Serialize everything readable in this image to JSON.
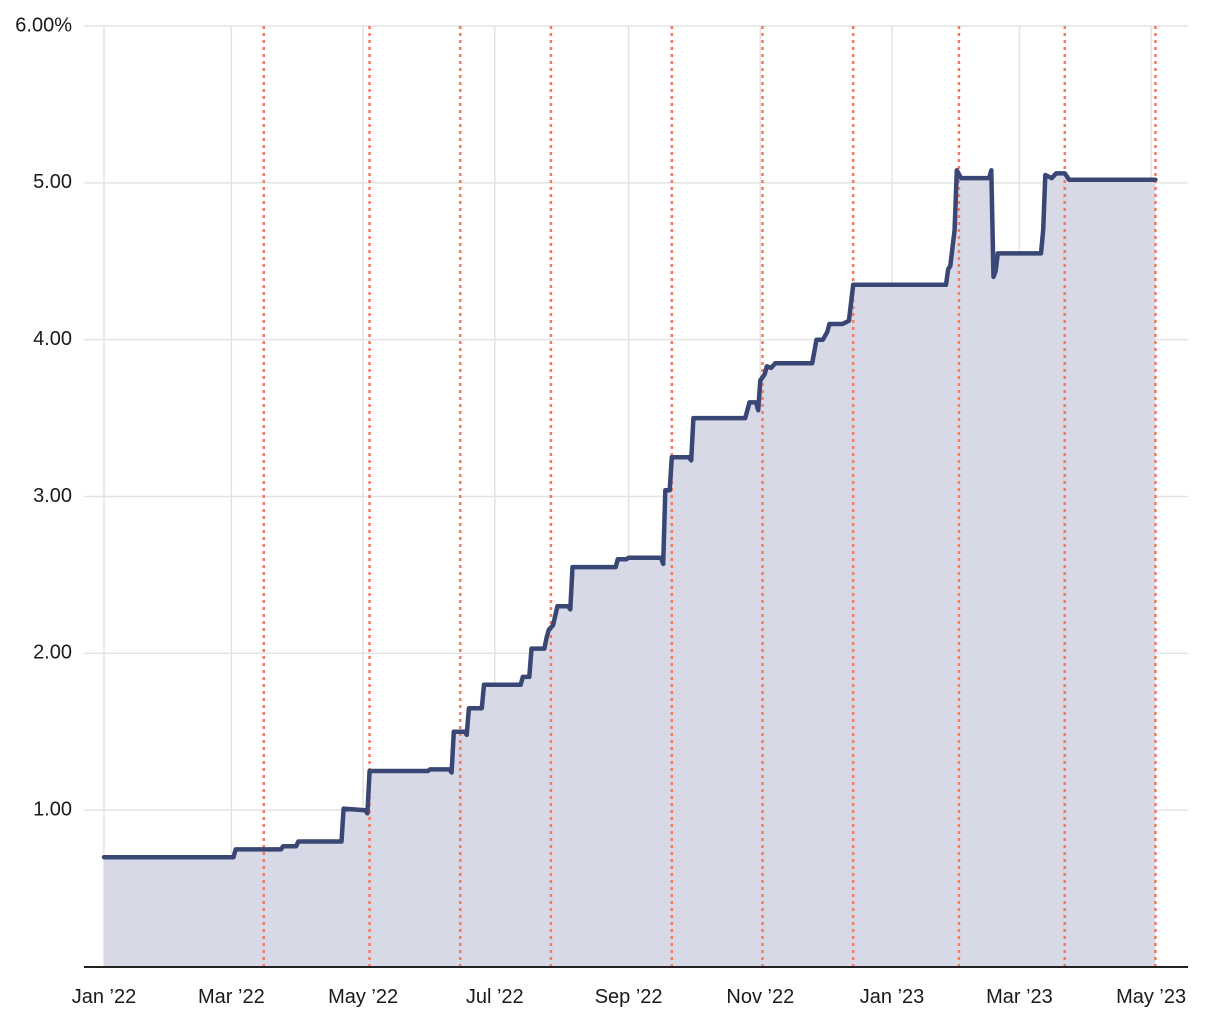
{
  "chart_data": {
    "type": "area",
    "title": "",
    "xlabel": "",
    "ylabel": "",
    "y_unit_suffix": "%",
    "ylim": [
      0,
      6
    ],
    "y_ticks": [
      {
        "value": 1,
        "label": "1.00"
      },
      {
        "value": 2,
        "label": "2.00"
      },
      {
        "value": 3,
        "label": "3.00"
      },
      {
        "value": 4,
        "label": "4.00"
      },
      {
        "value": 5,
        "label": "5.00"
      },
      {
        "value": 6,
        "label": "6.00%"
      }
    ],
    "xlim": [
      "2022-01-01",
      "2023-05-03"
    ],
    "x_ticks": [
      {
        "date": "2022-01-01",
        "label": "Jan ’22"
      },
      {
        "date": "2022-03-01",
        "label": "Mar ’22"
      },
      {
        "date": "2022-05-01",
        "label": "May ’22"
      },
      {
        "date": "2022-07-01",
        "label": "Jul ’22"
      },
      {
        "date": "2022-09-01",
        "label": "Sep ’22"
      },
      {
        "date": "2022-11-01",
        "label": "Nov ’22"
      },
      {
        "date": "2023-01-01",
        "label": "Jan ’23"
      },
      {
        "date": "2023-03-01",
        "label": "Mar ’23"
      },
      {
        "date": "2023-05-01",
        "label": "May ’23"
      }
    ],
    "grid": {
      "horizontal": true,
      "vertical": true
    },
    "colors": {
      "line": "#3a4775",
      "area": "#d7dae6",
      "event_line": "#f5785f",
      "grid": "#e3e3e3",
      "axis": "#222222"
    },
    "event_dates": [
      "2022-03-16",
      "2022-05-04",
      "2022-06-15",
      "2022-07-27",
      "2022-09-21",
      "2022-11-02",
      "2022-12-14",
      "2023-02-01",
      "2023-03-22",
      "2023-05-03"
    ],
    "series": [
      {
        "points": [
          [
            "2022-01-01",
            0.7
          ],
          [
            "2022-03-02",
            0.7
          ],
          [
            "2022-03-03",
            0.75
          ],
          [
            "2022-03-24",
            0.75
          ],
          [
            "2022-03-25",
            0.77
          ],
          [
            "2022-03-31",
            0.77
          ],
          [
            "2022-04-01",
            0.8
          ],
          [
            "2022-04-21",
            0.8
          ],
          [
            "2022-04-22",
            1.01
          ],
          [
            "2022-05-02",
            1.0
          ],
          [
            "2022-05-03",
            0.98
          ],
          [
            "2022-05-04",
            1.25
          ],
          [
            "2022-05-31",
            1.25
          ],
          [
            "2022-06-01",
            1.26
          ],
          [
            "2022-06-10",
            1.26
          ],
          [
            "2022-06-11",
            1.24
          ],
          [
            "2022-06-12",
            1.5
          ],
          [
            "2022-06-17",
            1.5
          ],
          [
            "2022-06-18",
            1.48
          ],
          [
            "2022-06-19",
            1.65
          ],
          [
            "2022-06-25",
            1.65
          ],
          [
            "2022-06-26",
            1.8
          ],
          [
            "2022-07-13",
            1.8
          ],
          [
            "2022-07-14",
            1.85
          ],
          [
            "2022-07-17",
            1.85
          ],
          [
            "2022-07-18",
            2.03
          ],
          [
            "2022-07-24",
            2.03
          ],
          [
            "2022-07-25",
            2.1
          ],
          [
            "2022-07-26",
            2.15
          ],
          [
            "2022-07-28",
            2.18
          ],
          [
            "2022-07-30",
            2.3
          ],
          [
            "2022-08-04",
            2.3
          ],
          [
            "2022-08-05",
            2.28
          ],
          [
            "2022-08-06",
            2.55
          ],
          [
            "2022-08-26",
            2.55
          ],
          [
            "2022-08-27",
            2.6
          ],
          [
            "2022-08-31",
            2.6
          ],
          [
            "2022-09-01",
            2.61
          ],
          [
            "2022-09-16",
            2.61
          ],
          [
            "2022-09-17",
            2.57
          ],
          [
            "2022-09-18",
            3.04
          ],
          [
            "2022-09-20",
            3.04
          ],
          [
            "2022-09-21",
            3.25
          ],
          [
            "2022-09-29",
            3.25
          ],
          [
            "2022-09-30",
            3.23
          ],
          [
            "2022-10-01",
            3.5
          ],
          [
            "2022-10-25",
            3.5
          ],
          [
            "2022-10-27",
            3.6
          ],
          [
            "2022-10-30",
            3.6
          ],
          [
            "2022-10-31",
            3.55
          ],
          [
            "2022-11-01",
            3.74
          ],
          [
            "2022-11-03",
            3.78
          ],
          [
            "2022-11-04",
            3.83
          ],
          [
            "2022-11-06",
            3.82
          ],
          [
            "2022-11-08",
            3.85
          ],
          [
            "2022-11-25",
            3.85
          ],
          [
            "2022-11-27",
            4.0
          ],
          [
            "2022-11-30",
            4.0
          ],
          [
            "2022-12-02",
            4.05
          ],
          [
            "2022-12-03",
            4.1
          ],
          [
            "2022-12-09",
            4.1
          ],
          [
            "2022-12-12",
            4.12
          ],
          [
            "2022-12-14",
            4.35
          ],
          [
            "2023-01-26",
            4.35
          ],
          [
            "2023-01-27",
            4.45
          ],
          [
            "2023-01-28",
            4.47
          ],
          [
            "2023-01-30",
            4.7
          ],
          [
            "2023-01-31",
            5.08
          ],
          [
            "2023-02-02",
            5.03
          ],
          [
            "2023-02-15",
            5.03
          ],
          [
            "2023-02-16",
            5.08
          ],
          [
            "2023-02-17",
            4.4
          ],
          [
            "2023-02-18",
            4.44
          ],
          [
            "2023-02-19",
            4.55
          ],
          [
            "2023-03-11",
            4.55
          ],
          [
            "2023-03-12",
            4.7
          ],
          [
            "2023-03-13",
            5.05
          ],
          [
            "2023-03-16",
            5.03
          ],
          [
            "2023-03-18",
            5.06
          ],
          [
            "2023-03-22",
            5.06
          ],
          [
            "2023-03-24",
            5.02
          ],
          [
            "2023-05-03",
            5.02
          ]
        ]
      }
    ]
  }
}
